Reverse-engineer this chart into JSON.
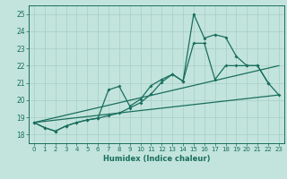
{
  "xlabel": "Humidex (Indice chaleur)",
  "xlim": [
    -0.5,
    23.5
  ],
  "ylim": [
    17.5,
    25.5
  ],
  "yticks": [
    18,
    19,
    20,
    21,
    22,
    23,
    24,
    25
  ],
  "xticks": [
    0,
    1,
    2,
    3,
    4,
    5,
    6,
    7,
    8,
    9,
    10,
    11,
    12,
    13,
    14,
    15,
    16,
    17,
    18,
    19,
    20,
    21,
    22,
    23
  ],
  "background_color": "#c2e4dc",
  "grid_color": "#a8cec6",
  "line_color": "#1a6e5e",
  "line1_x": [
    0,
    1,
    2,
    3,
    4,
    5,
    6,
    7,
    8,
    9,
    10,
    11,
    12,
    13,
    14,
    15,
    16,
    17,
    18,
    19,
    20,
    21,
    22
  ],
  "line1_y": [
    18.7,
    18.4,
    18.2,
    18.5,
    18.7,
    18.85,
    18.95,
    19.1,
    19.25,
    19.55,
    19.85,
    20.35,
    21.05,
    21.5,
    21.1,
    23.3,
    23.3,
    21.2,
    22.0,
    22.0,
    22.0,
    22.0,
    21.0
  ],
  "line2_x": [
    0,
    1,
    2,
    3,
    4,
    5,
    6,
    7,
    8,
    9,
    10,
    11,
    12,
    13,
    14,
    15,
    16,
    17,
    18,
    19,
    20,
    21,
    22,
    23
  ],
  "line2_y": [
    18.7,
    18.4,
    18.2,
    18.5,
    18.7,
    18.85,
    18.95,
    20.6,
    20.8,
    19.65,
    20.05,
    20.85,
    21.2,
    21.5,
    21.1,
    25.0,
    23.6,
    23.8,
    23.65,
    22.55,
    22.0,
    22.0,
    21.0,
    20.3
  ],
  "ref_line1_x": [
    0,
    23
  ],
  "ref_line1_y": [
    18.7,
    22.0
  ],
  "ref_line2_x": [
    0,
    23
  ],
  "ref_line2_y": [
    18.7,
    20.3
  ]
}
